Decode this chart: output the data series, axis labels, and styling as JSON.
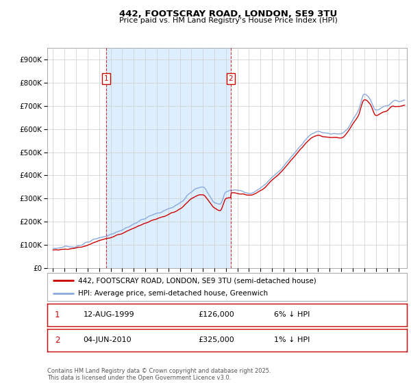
{
  "title": "442, FOOTSCRAY ROAD, LONDON, SE9 3TU",
  "subtitle": "Price paid vs. HM Land Registry's House Price Index (HPI)",
  "legend_line1": "442, FOOTSCRAY ROAD, LONDON, SE9 3TU (semi-detached house)",
  "legend_line2": "HPI: Average price, semi-detached house, Greenwich",
  "footnote": "Contains HM Land Registry data © Crown copyright and database right 2025.\nThis data is licensed under the Open Government Licence v3.0.",
  "sale1_label": "1",
  "sale1_date": "12-AUG-1999",
  "sale1_price": "£126,000",
  "sale1_hpi": "6% ↓ HPI",
  "sale2_label": "2",
  "sale2_date": "04-JUN-2010",
  "sale2_price": "£325,000",
  "sale2_hpi": "1% ↓ HPI",
  "price_color": "#cc0000",
  "hpi_color": "#88aadd",
  "shade_color": "#ddeeff",
  "grid_color": "#cccccc",
  "background_color": "#ffffff",
  "sale1_x": 1999.62,
  "sale1_y": 126000,
  "sale2_x": 2010.42,
  "sale2_y": 325000,
  "ylim": [
    0,
    950000
  ],
  "xlim_start": 1994.5,
  "xlim_end": 2025.7
}
